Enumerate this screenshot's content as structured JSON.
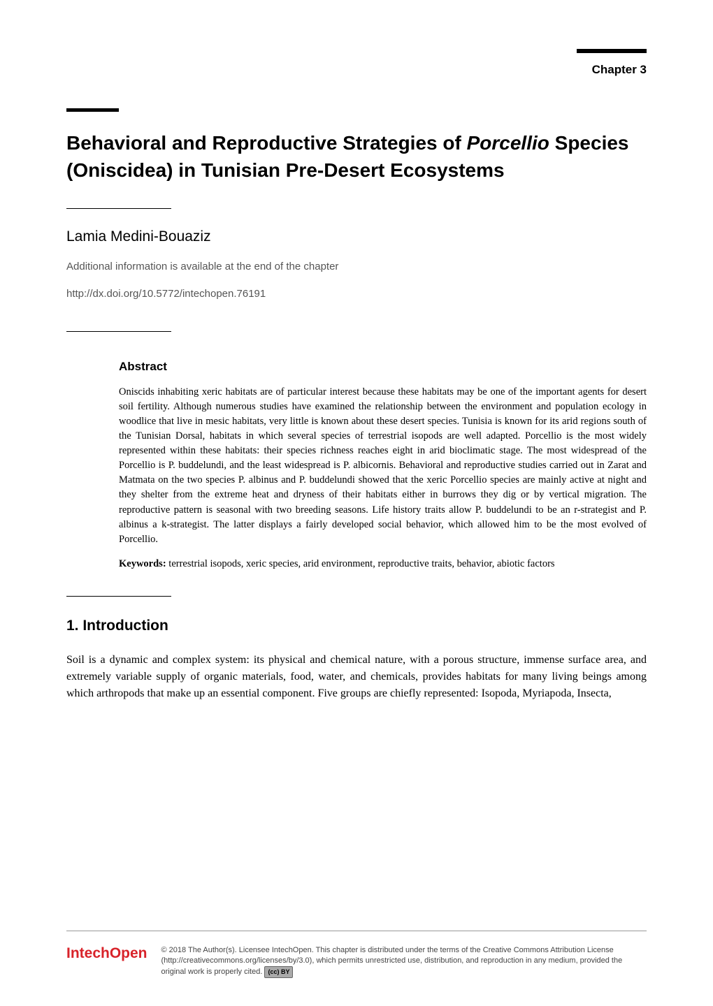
{
  "chapter_label": "Chapter 3",
  "title_part1": "Behavioral and Reproductive Strategies of ",
  "title_italic": "Porcellio",
  "title_part2": " Species (Oniscidea) in Tunisian Pre-Desert Ecosystems",
  "author": "Lamia Medini-Bouaziz",
  "additional_info": "Additional information is available at the end of the chapter",
  "doi": "http://dx.doi.org/10.5772/intechopen.76191",
  "abstract_heading": "Abstract",
  "abstract_text": "Oniscids inhabiting xeric habitats are of particular interest because these habitats may be one of the important agents for desert soil fertility. Although numerous studies have examined the relationship between the environment and population ecology in woodlice that live in mesic habitats, very little is known about these desert species. Tunisia is known for its arid regions south of the Tunisian Dorsal, habitats in which several species of terrestrial isopods are well adapted. Porcellio is the most widely represented within these habitats: their species richness reaches eight in arid bioclimatic stage. The most widespread of the Porcellio is P. buddelundi, and the least widespread is P. albicornis. Behavioral and reproductive studies carried out in Zarat and Matmata on the two species P. albinus and P. buddelundi showed that the xeric Porcellio species are mainly active at night and they shelter from the extreme heat and dryness of their habitats either in burrows they dig or by vertical migration. The reproductive pattern is seasonal with two breeding seasons. Life history traits allow P. buddelundi to be an r-strategist and P. albinus a k-strategist. The latter displays a fairly developed social behavior, which allowed him to be the most evolved of Porcellio.",
  "keywords_label": "Keywords:",
  "keywords_text": " terrestrial isopods, xeric species, arid environment, reproductive traits, behavior, abiotic factors",
  "intro_heading": "1. Introduction",
  "intro_text": "Soil is a dynamic and complex system: its physical and chemical nature, with a porous structure, immense surface area, and extremely variable supply of organic materials, food, water, and chemicals, provides habitats for many living beings among which arthropods that make up an essential component. Five groups are chiefly represented: Isopoda, Myriapoda, Insecta,",
  "logo": "IntechOpen",
  "copyright": "© 2018 The Author(s). Licensee IntechOpen. This chapter is distributed under the terms of the Creative Commons Attribution License (http://creativecommons.org/licenses/by/3.0), which permits unrestricted use, distribution, and reproduction in any medium, provided the original work is properly cited.",
  "cc_badge": "(cc) BY",
  "colors": {
    "text": "#000000",
    "background": "#ffffff",
    "logo": "#d8232a",
    "muted": "#555555",
    "footer_text": "#444444"
  },
  "typography": {
    "title_fontsize": 28,
    "author_fontsize": 21,
    "body_fontsize": 16,
    "abstract_fontsize": 14.5,
    "footer_fontsize": 11
  }
}
